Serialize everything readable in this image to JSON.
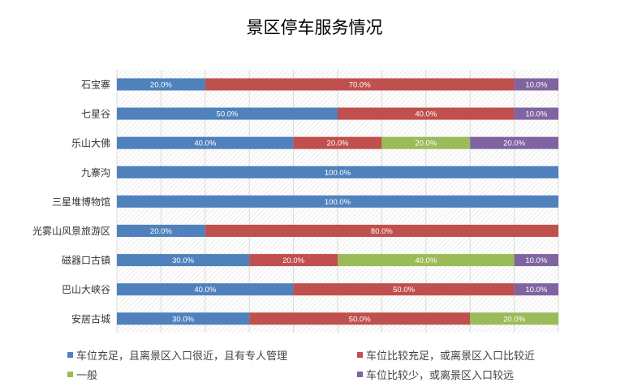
{
  "chart_data": {
    "type": "bar",
    "orientation": "horizontal",
    "stacked": true,
    "title": "景区停车服务情况",
    "xlabel": "",
    "ylabel": "",
    "xlim": [
      0,
      100
    ],
    "grid": true,
    "legend_position": "bottom",
    "categories": [
      "石宝寨",
      "七星谷",
      "乐山大佛",
      "九寨沟",
      "三星堆博物馆",
      "光雾山风景旅游区",
      "磁器口古镇",
      "巴山大峡谷",
      "安居古城"
    ],
    "series": [
      {
        "name": "车位充足，且离景区入口很近，且有专人管理",
        "color": "#4f81bd",
        "values": [
          20,
          50,
          40,
          100,
          100,
          20,
          30,
          40,
          30
        ]
      },
      {
        "name": "车位比较充足，或离景区入口比较近",
        "color": "#c0504d",
        "values": [
          70,
          40,
          20,
          0,
          0,
          80,
          20,
          50,
          50
        ]
      },
      {
        "name": "一般",
        "color": "#9bbb59",
        "values": [
          0,
          0,
          20,
          0,
          0,
          0,
          40,
          0,
          20
        ]
      },
      {
        "name": "车位比较少，或离景区入口较远",
        "color": "#8064a2",
        "values": [
          10,
          10,
          20,
          0,
          0,
          0,
          10,
          10,
          0
        ]
      }
    ]
  }
}
